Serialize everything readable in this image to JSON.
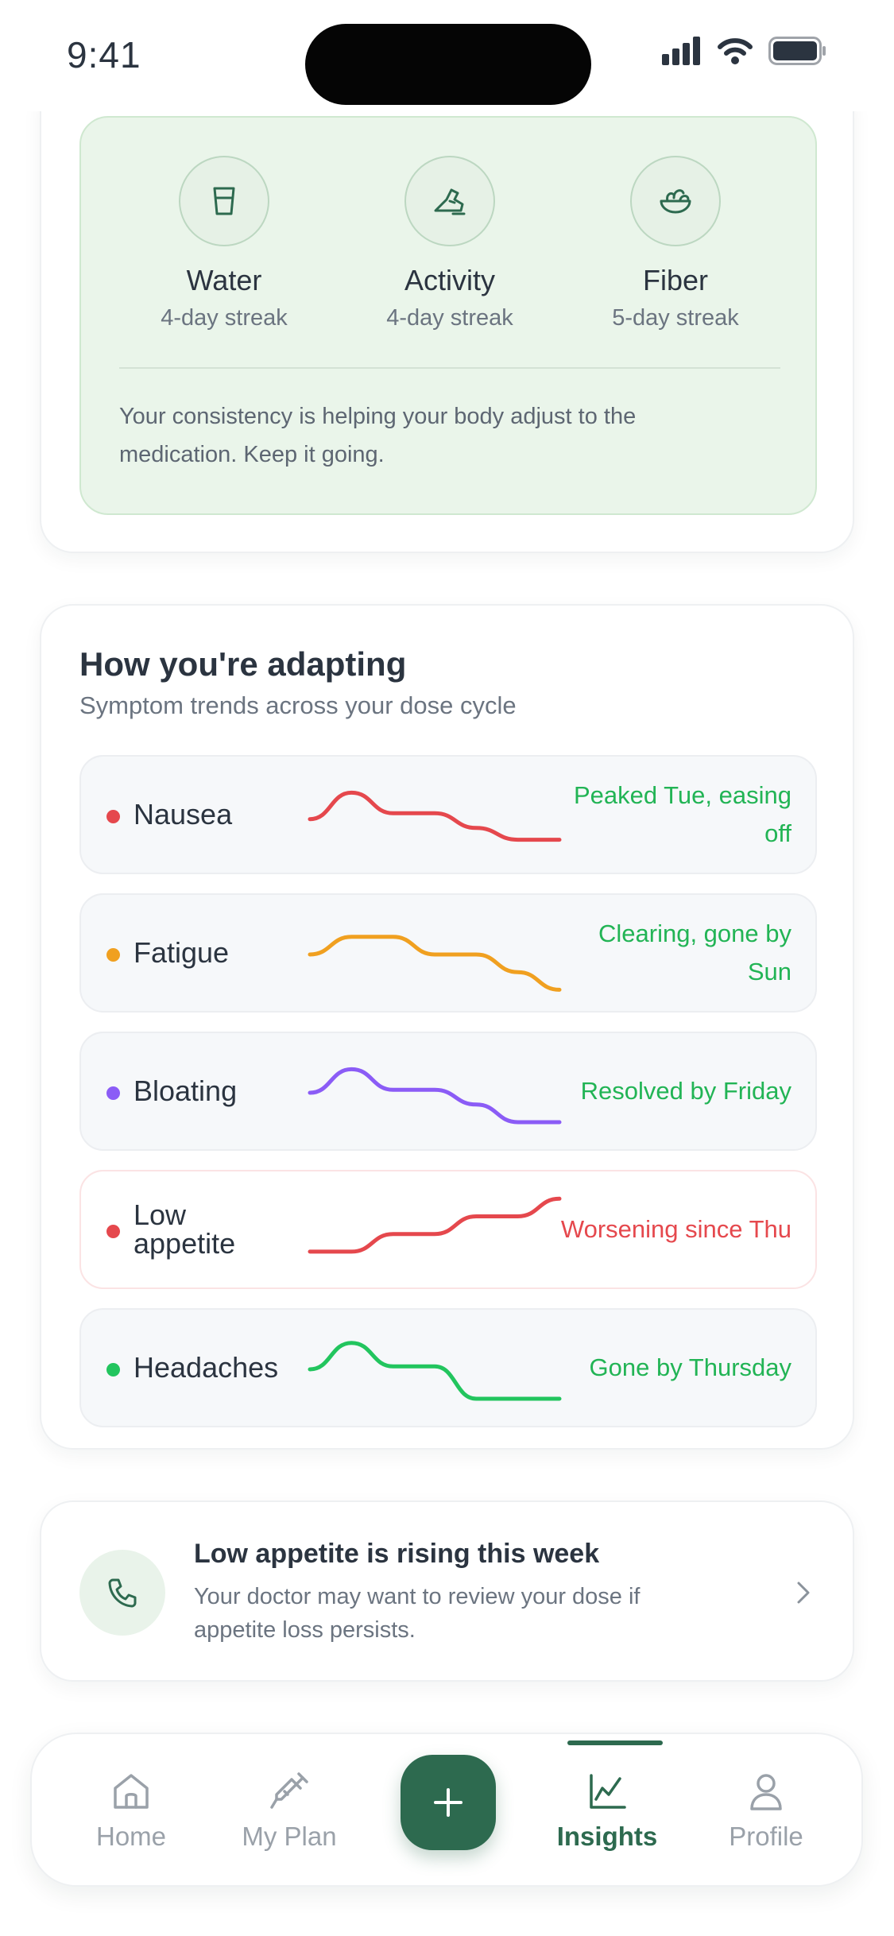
{
  "status_bar": {
    "time": "9:41"
  },
  "streaks": {
    "items": [
      {
        "name": "Water",
        "sub": "4-day streak",
        "icon": "glass-icon"
      },
      {
        "name": "Activity",
        "sub": "4-day streak",
        "icon": "shoe-icon"
      },
      {
        "name": "Fiber",
        "sub": "5-day streak",
        "icon": "salad-bowl-icon"
      }
    ],
    "note": "Your consistency is helping your body adjust to the medication. Keep it going."
  },
  "adapting": {
    "title": "How you're adapting",
    "subtitle": "Symptom trends across your dose cycle",
    "symptoms": [
      {
        "name": "Nausea",
        "status": "Peaked Tue, easing off",
        "color": "#e5484d",
        "status_color": "#22b455",
        "trend": [
          0.45,
          0.9,
          0.55,
          0.55,
          0.3,
          0.1,
          0.1
        ]
      },
      {
        "name": "Fatigue",
        "status": "Clearing, gone by Sun",
        "color": "#f0a020",
        "status_color": "#22b455",
        "trend": [
          0.5,
          0.8,
          0.8,
          0.5,
          0.5,
          0.2,
          -0.1
        ]
      },
      {
        "name": "Bloating",
        "status": "Resolved by Friday",
        "color": "#8b5cf6",
        "status_color": "#22b455",
        "trend": [
          0.5,
          0.9,
          0.55,
          0.55,
          0.3,
          0.0,
          0.0
        ]
      },
      {
        "name": "Low appetite",
        "status": "Worsening since Thu",
        "color": "#e5484d",
        "status_color": "#e5484d",
        "trend": [
          0.15,
          0.15,
          0.45,
          0.45,
          0.75,
          0.75,
          1.05
        ]
      },
      {
        "name": "Headaches",
        "status": "Gone by Thursday",
        "color": "#22c55e",
        "status_color": "#22b455",
        "trend": [
          0.5,
          0.95,
          0.55,
          0.55,
          0.0,
          0.0,
          0.0
        ]
      }
    ]
  },
  "alert": {
    "title": "Low appetite is rising this week",
    "body": "Your doctor may want to review your dose if appetite loss persists.",
    "icon": "phone-icon"
  },
  "nav": {
    "items": [
      {
        "label": "Home",
        "icon": "home-icon",
        "active": false
      },
      {
        "label": "My Plan",
        "icon": "syringe-icon",
        "active": false
      },
      {
        "label": "Insights",
        "icon": "chart-icon",
        "active": true
      },
      {
        "label": "Profile",
        "icon": "person-icon",
        "active": false
      }
    ],
    "fab_icon": "plus-icon",
    "accent": "#2d6a4f"
  }
}
